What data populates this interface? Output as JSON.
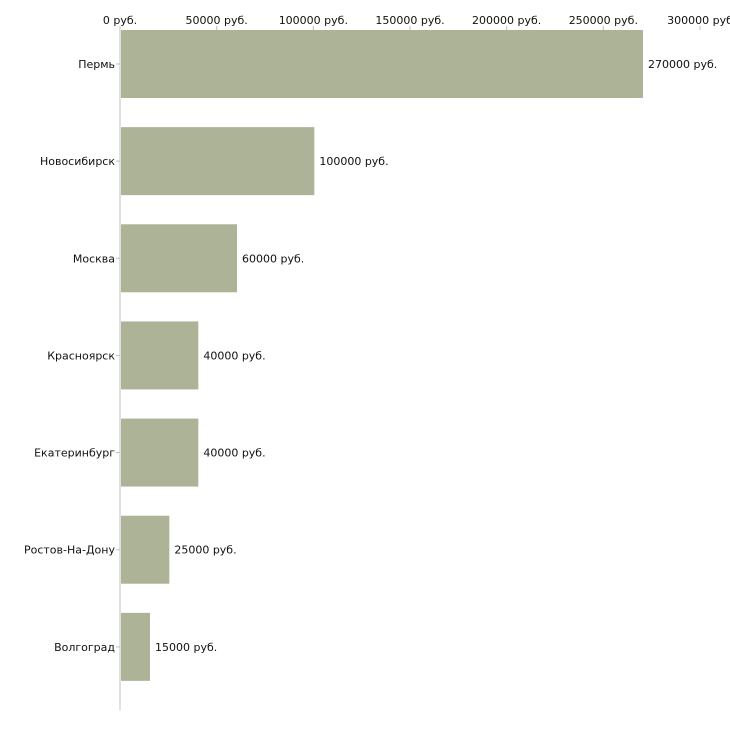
{
  "chart_data": {
    "type": "bar",
    "orientation": "horizontal",
    "title": "",
    "xlabel": "",
    "ylabel": "",
    "categories": [
      "Пермь",
      "Новосибирск",
      "Москва",
      "Красноярск",
      "Екатеринбург",
      "Ростов-На-Дону",
      "Волгоград"
    ],
    "values": [
      270000,
      100000,
      60000,
      40000,
      40000,
      25000,
      15000
    ],
    "value_labels": [
      "270000 руб.",
      "100000 руб.",
      "60000 руб.",
      "40000 руб.",
      "40000 руб.",
      "25000 руб.",
      "15000 руб."
    ],
    "xlim": [
      0,
      300000
    ],
    "x_ticks": [
      0,
      50000,
      100000,
      150000,
      200000,
      250000,
      300000
    ],
    "x_tick_labels": [
      "0 руб.",
      "50000 руб.",
      "100000 руб.",
      "150000 руб.",
      "200000 руб.",
      "250000 руб.",
      "300000 руб"
    ],
    "axis_position": "top",
    "grid": false,
    "legend": "none",
    "bar_color": "#adb397",
    "axis_color": "#c0c0c0"
  }
}
